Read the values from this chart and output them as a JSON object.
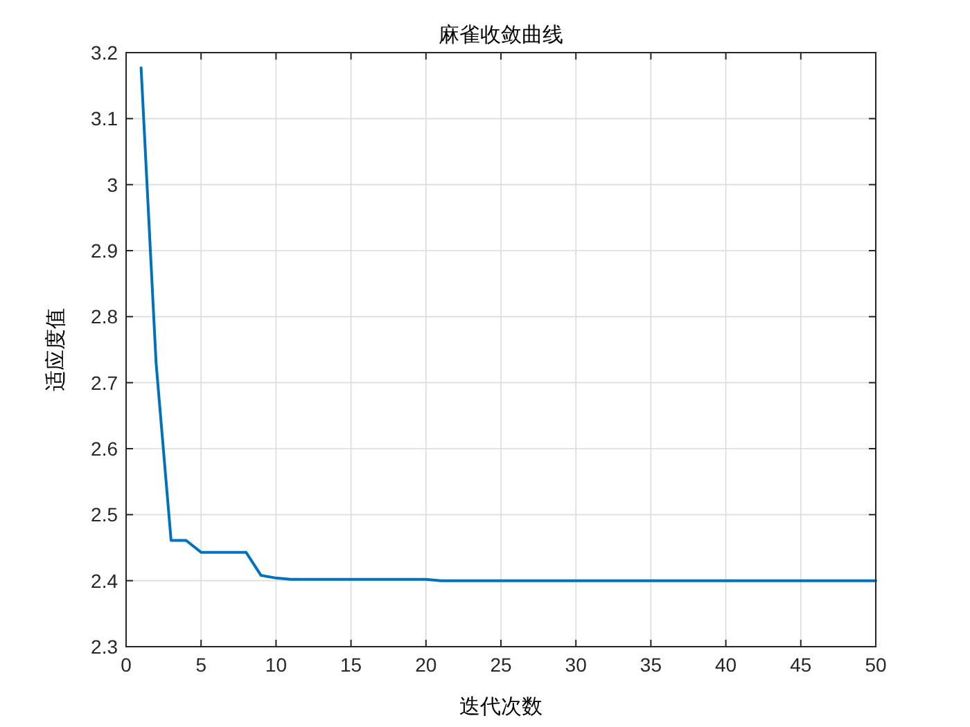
{
  "chart_data": {
    "type": "line",
    "title": "麻雀收敛曲线",
    "xlabel": "迭代次数",
    "ylabel": "适应度值",
    "x": [
      1,
      2,
      3,
      4,
      5,
      6,
      7,
      8,
      9,
      10,
      11,
      12,
      13,
      14,
      15,
      16,
      17,
      18,
      19,
      20,
      21,
      22,
      23,
      24,
      25,
      26,
      27,
      28,
      29,
      30,
      31,
      32,
      33,
      34,
      35,
      36,
      37,
      38,
      39,
      40,
      41,
      42,
      43,
      44,
      45,
      46,
      47,
      48,
      49,
      50
    ],
    "series": [
      {
        "color": "#0072bd",
        "values": [
          3.177,
          2.73,
          2.461,
          2.461,
          2.443,
          2.443,
          2.443,
          2.443,
          2.408,
          2.404,
          2.402,
          2.402,
          2.402,
          2.402,
          2.402,
          2.402,
          2.402,
          2.402,
          2.402,
          2.402,
          2.4,
          2.4,
          2.4,
          2.4,
          2.4,
          2.4,
          2.4,
          2.4,
          2.4,
          2.4,
          2.4,
          2.4,
          2.4,
          2.4,
          2.4,
          2.4,
          2.4,
          2.4,
          2.4,
          2.4,
          2.4,
          2.4,
          2.4,
          2.4,
          2.4,
          2.4,
          2.4,
          2.4,
          2.4,
          2.4
        ]
      }
    ],
    "xlim": [
      0,
      50
    ],
    "ylim": [
      2.3,
      3.2
    ],
    "xticks": [
      0,
      5,
      10,
      15,
      20,
      25,
      30,
      35,
      40,
      45,
      50
    ],
    "yticks": [
      2.3,
      2.4,
      2.5,
      2.6,
      2.7,
      2.8,
      2.9,
      3,
      3.1,
      3.2
    ],
    "grid": true,
    "line_style": "solid",
    "marker": "none"
  }
}
